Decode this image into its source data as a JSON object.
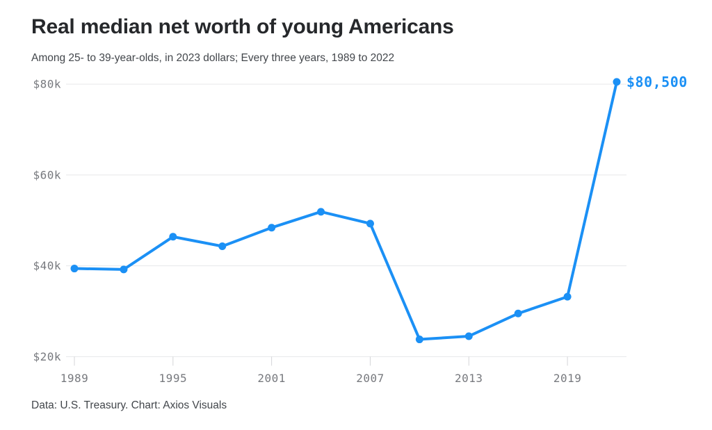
{
  "header": {
    "title": "Real median net worth of young Americans",
    "subtitle": "Among 25- to 39-year-olds, in 2023 dollars; Every three years, 1989 to 2022"
  },
  "footer": {
    "source": "Data: U.S. Treasury. Chart: Axios Visuals"
  },
  "colors": {
    "accent_blue": "#1b90f5",
    "grid_line": "#e6e7e9",
    "tick_line": "#d4d5d8",
    "axis_text": "#77797e",
    "title_text": "#26282b",
    "body_text": "#42464b"
  },
  "chart_data": {
    "type": "line",
    "title": "Real median net worth of young Americans",
    "subtitle": "Among 25- to 39-year-olds, in 2023 dollars; Every three years, 1989 to 2022",
    "x": [
      1989,
      1992,
      1995,
      1998,
      2001,
      2004,
      2007,
      2010,
      2013,
      2016,
      2019,
      2022
    ],
    "values": [
      39400,
      39200,
      46400,
      44300,
      48400,
      51900,
      49300,
      23800,
      24500,
      29500,
      33200,
      80500
    ],
    "end_label": "$80,500",
    "x_ticks": [
      1989,
      1995,
      2001,
      2007,
      2013,
      2019
    ],
    "x_tick_labels": [
      "1989",
      "1995",
      "2001",
      "2007",
      "2013",
      "2019"
    ],
    "y_ticks": [
      20000,
      40000,
      60000,
      80000
    ],
    "y_tick_labels": [
      "$20k",
      "$40k",
      "$60k",
      "$80k"
    ],
    "xlim": [
      1989,
      2022
    ],
    "ylim": [
      20000,
      80500
    ],
    "xlabel": "",
    "ylabel": "",
    "grid": true,
    "legend": "none",
    "source": "Data: U.S. Treasury. Chart: Axios Visuals"
  }
}
